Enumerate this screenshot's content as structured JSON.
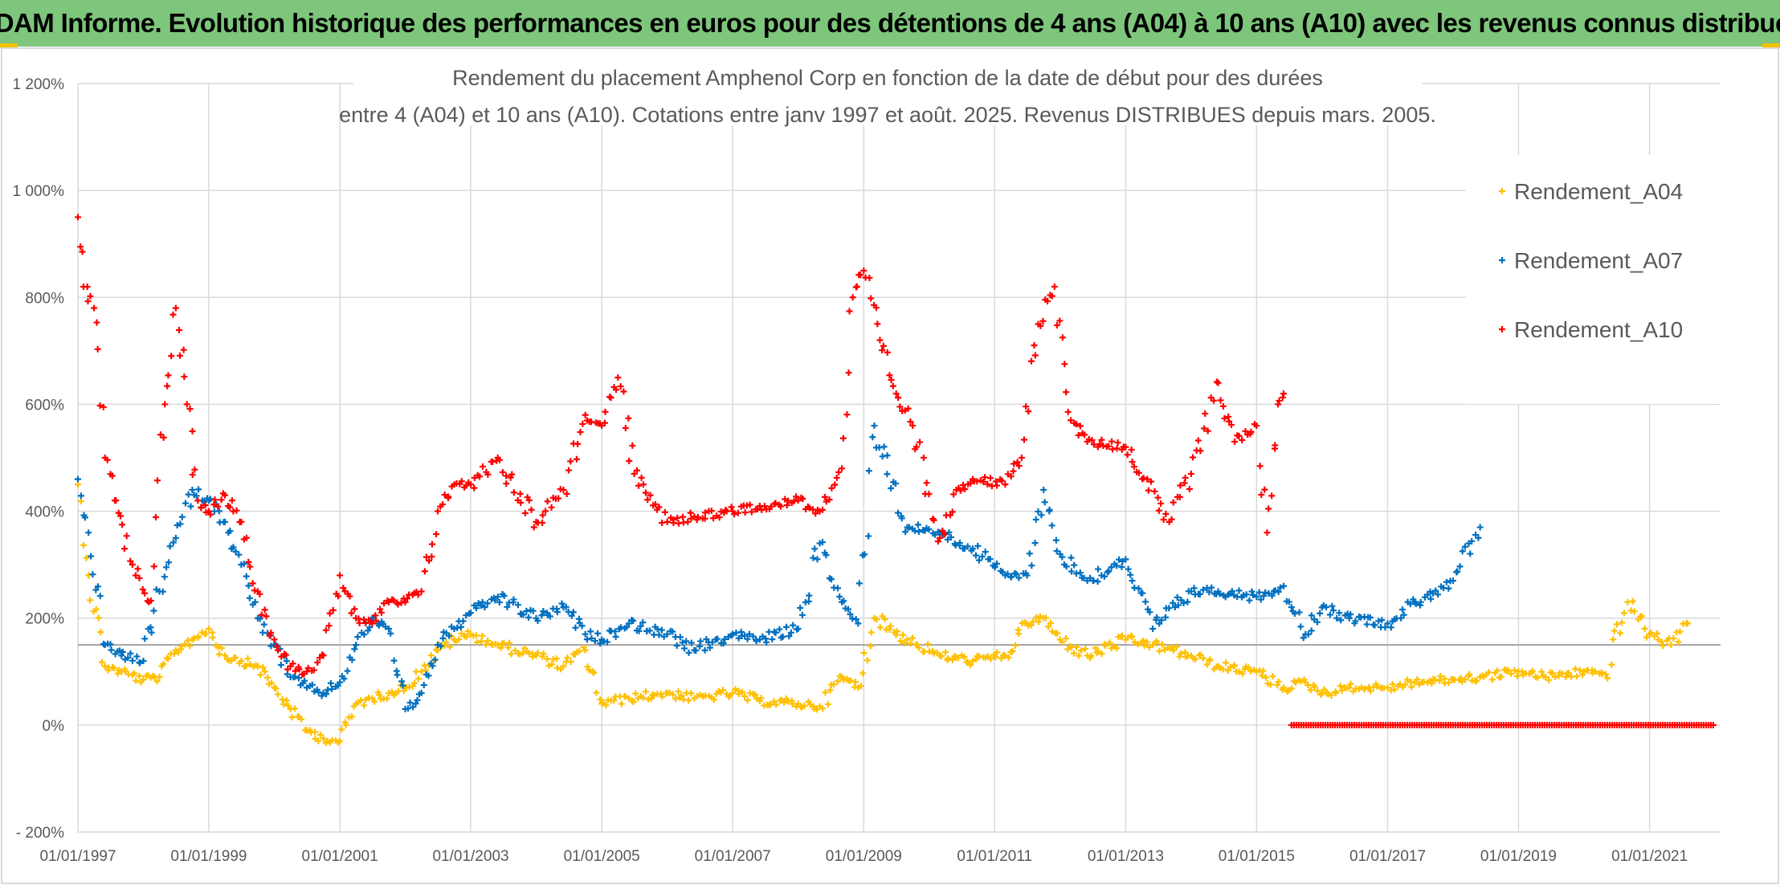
{
  "header": {
    "banner": "ADAM Informe. Evolution historique des performances en euros pour des détentions de 4 ans (A04) à 10 ans (A10) avec les revenus connus distribués"
  },
  "colors": {
    "banner": "#7dc67b",
    "A04": "#ffc000",
    "A07": "#0070c0",
    "A10": "#ff0000",
    "grid": "#d9d9d9",
    "text": "#595959"
  },
  "chart_data": {
    "type": "scatter",
    "title_line1": "Rendement du placement Amphenol Corp en fonction de la date de début pour des durées",
    "title_line2": "entre 4 (A04) et 10 ans (A10). Cotations entre janv 1997 et août. 2025. Revenus DISTRIBUES depuis mars. 2005.",
    "xlim": [
      "1997-01-01",
      "2022-02-01"
    ],
    "ylim": [
      -200,
      1200
    ],
    "yticks": [
      -200,
      0,
      200,
      400,
      600,
      800,
      1000,
      1200
    ],
    "ytick_labels": [
      "- 200%",
      "0%",
      "200%",
      "400%",
      "600%",
      "800%",
      "1 000%",
      "1 200%"
    ],
    "xtick_labels": [
      "01/01/1997",
      "01/01/1999",
      "01/01/2001",
      "01/01/2003",
      "01/01/2005",
      "01/01/2007",
      "01/01/2009",
      "01/01/2011",
      "01/01/2013",
      "01/01/2015",
      "01/01/2017",
      "01/01/2019",
      "01/01/2021"
    ],
    "reference_line": 150,
    "legend_position": "right",
    "series": [
      {
        "name": "Rendement_A04",
        "key": "A04",
        "x": [
          "1997-01-01",
          "1997-03-01",
          "1997-06-01",
          "1997-09-01",
          "1998-01-01",
          "1998-04-01",
          "1998-07-01",
          "1998-10-01",
          "1999-01-01",
          "1999-04-01",
          "1999-07-01",
          "1999-10-01",
          "2000-01-01",
          "2000-04-01",
          "2000-07-01",
          "2000-10-01",
          "2001-01-01",
          "2001-04-01",
          "2001-07-01",
          "2001-10-01",
          "2002-01-01",
          "2002-04-01",
          "2002-07-01",
          "2002-10-01",
          "2003-01-01",
          "2003-06-01",
          "2004-01-01",
          "2004-06-01",
          "2004-10-01",
          "2005-01-01",
          "2005-06-01",
          "2006-01-01",
          "2006-06-01",
          "2007-01-01",
          "2007-06-01",
          "2008-01-01",
          "2008-05-01",
          "2008-09-01",
          "2008-12-01",
          "2009-03-01",
          "2009-09-01",
          "2010-03-01",
          "2010-09-01",
          "2011-03-01",
          "2011-07-01",
          "2011-10-01",
          "2012-01-01",
          "2012-06-01",
          "2013-01-01",
          "2013-06-01",
          "2014-01-01",
          "2014-06-01",
          "2015-01-01",
          "2015-06-01",
          "2015-10-01",
          "2016-01-01",
          "2016-06-01",
          "2017-01-01",
          "2017-06-01",
          "2018-01-01",
          "2018-06-01",
          "2019-01-01",
          "2019-06-01",
          "2020-01-01",
          "2020-05-01",
          "2020-09-01",
          "2021-01-01",
          "2021-05-01",
          "2021-08-01"
        ],
        "y": [
          450,
          280,
          110,
          100,
          85,
          90,
          140,
          160,
          180,
          130,
          120,
          110,
          70,
          30,
          -10,
          -25,
          -30,
          40,
          50,
          60,
          70,
          100,
          140,
          160,
          170,
          150,
          130,
          110,
          140,
          40,
          50,
          60,
          50,
          60,
          45,
          40,
          35,
          90,
          70,
          200,
          160,
          130,
          120,
          130,
          190,
          200,
          160,
          130,
          160,
          150,
          130,
          110,
          100,
          70,
          80,
          60,
          70,
          70,
          80,
          85,
          90,
          100,
          90,
          100,
          95,
          230,
          170,
          150,
          190
        ]
      },
      {
        "name": "Rendement_A07",
        "key": "A07",
        "x": [
          "1997-01-01",
          "1997-03-01",
          "1997-06-01",
          "1997-09-01",
          "1998-01-01",
          "1998-04-01",
          "1998-07-01",
          "1998-10-01",
          "1999-01-01",
          "1999-04-01",
          "1999-07-01",
          "1999-10-01",
          "2000-01-01",
          "2000-04-01",
          "2000-07-01",
          "2000-10-01",
          "2001-01-01",
          "2001-04-01",
          "2001-07-01",
          "2001-10-01",
          "2002-01-01",
          "2002-04-01",
          "2002-07-01",
          "2002-10-01",
          "2003-01-01",
          "2003-06-01",
          "2004-01-01",
          "2004-06-01",
          "2004-10-01",
          "2005-01-01",
          "2005-06-01",
          "2006-01-01",
          "2006-06-01",
          "2007-01-01",
          "2007-06-01",
          "2008-01-01",
          "2008-05-01",
          "2008-09-01",
          "2008-12-01",
          "2009-03-01",
          "2009-09-01",
          "2010-03-01",
          "2010-09-01",
          "2011-03-01",
          "2011-07-01",
          "2011-10-01",
          "2012-01-01",
          "2012-06-01",
          "2013-01-01",
          "2013-06-01",
          "2014-01-01",
          "2014-06-01",
          "2015-01-01",
          "2015-06-01",
          "2015-10-01",
          "2016-01-01",
          "2016-06-01",
          "2017-01-01",
          "2017-06-01",
          "2018-01-01",
          "2018-06-01"
        ],
        "y": [
          460,
          360,
          150,
          130,
          120,
          250,
          350,
          440,
          420,
          380,
          300,
          200,
          150,
          90,
          70,
          60,
          80,
          150,
          200,
          180,
          30,
          60,
          150,
          180,
          210,
          240,
          200,
          220,
          170,
          160,
          190,
          170,
          140,
          170,
          160,
          180,
          340,
          230,
          190,
          560,
          370,
          360,
          330,
          280,
          280,
          440,
          320,
          270,
          310,
          180,
          250,
          250,
          240,
          260,
          170,
          220,
          200,
          190,
          230,
          270,
          370
        ]
      },
      {
        "name": "Rendement_A10",
        "key": "A10",
        "x": [
          "1997-01-01",
          "1997-02-01",
          "1997-04-01",
          "1997-06-01",
          "1997-08-01",
          "1997-11-01",
          "1998-02-01",
          "1998-05-01",
          "1998-07-01",
          "1998-09-01",
          "1998-11-01",
          "1999-01-01",
          "1999-04-01",
          "1999-07-01",
          "1999-10-01",
          "2000-01-01",
          "2000-04-01",
          "2000-07-01",
          "2000-10-01",
          "2001-01-01",
          "2001-04-01",
          "2001-07-01",
          "2001-10-01",
          "2002-01-01",
          "2002-04-01",
          "2002-07-01",
          "2002-10-01",
          "2003-01-01",
          "2003-06-01",
          "2004-01-01",
          "2004-06-01",
          "2004-10-01",
          "2005-01-01",
          "2005-04-01",
          "2005-07-01",
          "2006-01-01",
          "2006-06-01",
          "2007-01-01",
          "2007-06-01",
          "2008-01-01",
          "2008-05-01",
          "2008-09-01",
          "2008-11-01",
          "2009-01-01",
          "2009-04-01",
          "2009-07-01",
          "2009-10-01",
          "2010-03-01",
          "2010-06-01",
          "2010-09-01",
          "2011-03-01",
          "2011-06-01",
          "2011-09-01",
          "2011-12-01",
          "2012-03-01",
          "2012-06-01",
          "2013-01-01",
          "2013-05-01",
          "2013-09-01",
          "2014-01-01",
          "2014-06-01",
          "2014-09-01",
          "2015-01-01",
          "2015-03-01",
          "2015-05-01",
          "2015-06-01"
        ],
        "y": [
          950,
          820,
          780,
          500,
          420,
          300,
          230,
          600,
          780,
          600,
          420,
          400,
          430,
          380,
          250,
          160,
          110,
          100,
          130,
          280,
          200,
          190,
          230,
          230,
          250,
          400,
          450,
          450,
          500,
          380,
          440,
          580,
          560,
          650,
          470,
          380,
          390,
          400,
          410,
          420,
          400,
          480,
          800,
          850,
          720,
          620,
          560,
          350,
          440,
          460,
          450,
          500,
          750,
          820,
          570,
          530,
          520,
          460,
          380,
          470,
          640,
          530,
          560,
          360,
          600,
          620
        ]
      }
    ]
  }
}
